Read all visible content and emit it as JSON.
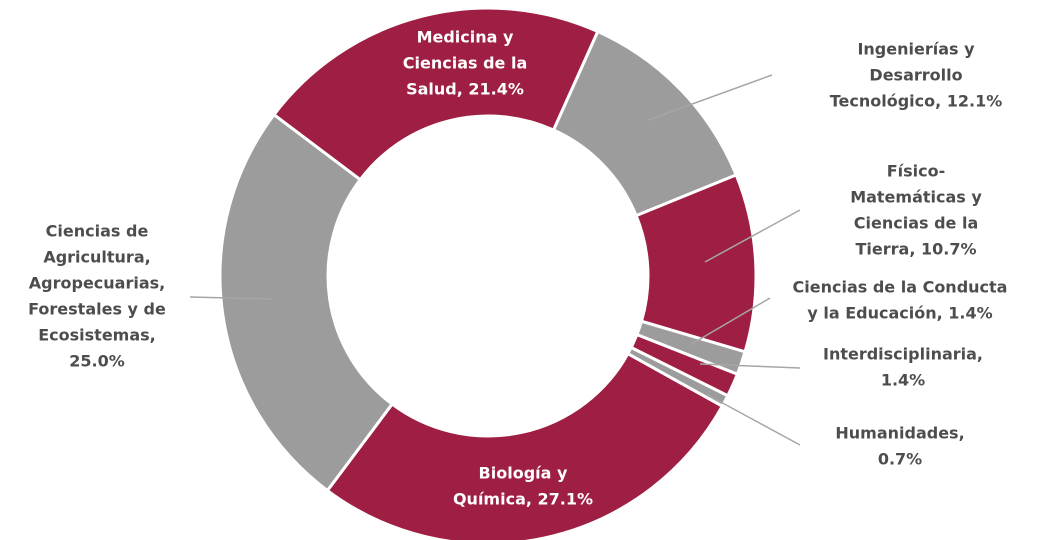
{
  "chart_data": {
    "type": "donut",
    "labels": [
      [
        "Medicina y",
        "Ciencias de la",
        "Salud, 21.4%"
      ],
      [
        "Ingenierías y",
        "Desarrollo",
        "Tecnológico, 12.1%"
      ],
      [
        "Físico-",
        "Matemáticas y",
        "Ciencias de la",
        "Tierra, 10.7%"
      ],
      [
        "Ciencias de la Conducta",
        "y la Educación, 1.4%"
      ],
      [
        "Interdisciplinaria,",
        "1.4%"
      ],
      [
        "Humanidades,",
        "0.7%"
      ],
      [
        "Biología y",
        "Química, 27.1%"
      ],
      [
        "Ciencias de",
        "Agricultura,",
        "Agropecuarias,",
        "Forestales y de",
        "Ecosistemas,",
        "25.0%"
      ]
    ],
    "values": [
      21.4,
      12.1,
      10.7,
      1.4,
      1.4,
      0.7,
      27.1,
      25.0
    ],
    "colors": [
      "#9e1f43",
      "#9c9c9c",
      "#9e1f43",
      "#9c9c9c",
      "#9e1f43",
      "#9c9c9c",
      "#9e1f43",
      "#9c9c9c"
    ]
  }
}
